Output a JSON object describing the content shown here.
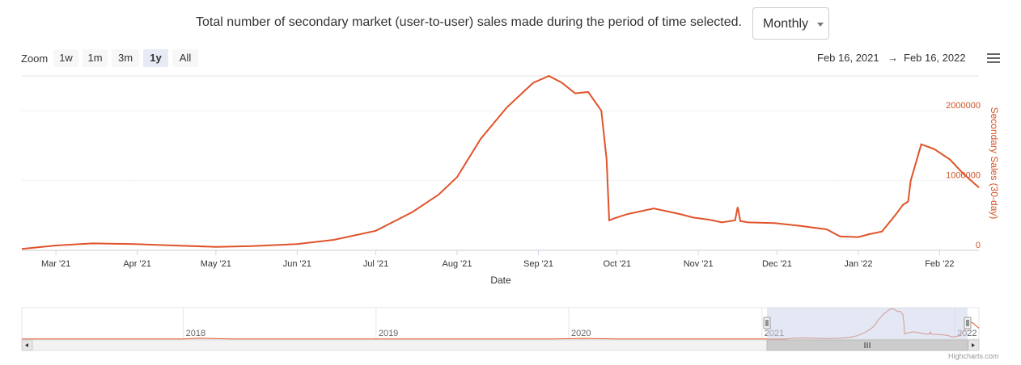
{
  "header": {
    "description": "Total number of secondary market (user-to-user) sales made during the period of time selected.",
    "period_selected": "Monthly"
  },
  "zoom": {
    "label": "Zoom",
    "buttons": [
      "1w",
      "1m",
      "3m",
      "1y",
      "All"
    ],
    "active": "1y"
  },
  "range": {
    "from": "Feb 16, 2021",
    "separator": "→",
    "to": "Feb 16, 2022"
  },
  "credits": "Highcharts.com",
  "colors": {
    "series": "#e0532a",
    "axis_label": "#d2542a",
    "navigator_mask": "#ccd6eb"
  },
  "chart_data": {
    "type": "line",
    "xlabel": "Date",
    "ylabel": "Secondary Sales (30-day)",
    "x_range": [
      "2021-02-16",
      "2022-02-16"
    ],
    "ylim": [
      0,
      2500000
    ],
    "y_ticks": [
      0,
      1000000,
      2000000
    ],
    "x_ticks": [
      "Mar '21",
      "Apr '21",
      "May '21",
      "Jun '21",
      "Jul '21",
      "Aug '21",
      "Sep '21",
      "Oct '21",
      "Nov '21",
      "Dec '21",
      "Jan '22",
      "Feb '22"
    ],
    "grid": true,
    "series": [
      {
        "x": [
          "2021-02-16",
          "2021-03-01",
          "2021-03-15",
          "2021-03-31",
          "2021-04-15",
          "2021-05-01",
          "2021-05-15",
          "2021-06-01",
          "2021-06-15",
          "2021-07-01",
          "2021-07-15",
          "2021-07-25",
          "2021-08-01",
          "2021-08-10",
          "2021-08-20",
          "2021-08-30",
          "2021-09-05",
          "2021-09-10",
          "2021-09-15",
          "2021-09-20",
          "2021-09-25",
          "2021-09-27",
          "2021-09-28",
          "2021-09-30",
          "2021-10-05",
          "2021-10-10",
          "2021-10-15",
          "2021-10-20",
          "2021-10-25",
          "2021-10-30",
          "2021-11-05",
          "2021-11-10",
          "2021-11-15",
          "2021-11-16",
          "2021-11-17",
          "2021-11-20",
          "2021-11-30",
          "2021-12-10",
          "2021-12-20",
          "2021-12-25",
          "2022-01-01",
          "2022-01-05",
          "2022-01-10",
          "2022-01-15",
          "2022-01-18",
          "2022-01-20",
          "2022-01-21",
          "2022-01-25",
          "2022-01-30",
          "2022-02-05",
          "2022-02-10",
          "2022-02-16"
        ],
        "y": [
          20000,
          70000,
          100000,
          90000,
          70000,
          50000,
          60000,
          90000,
          150000,
          280000,
          550000,
          800000,
          1050000,
          1600000,
          2050000,
          2400000,
          2500000,
          2400000,
          2250000,
          2270000,
          2000000,
          1300000,
          430000,
          460000,
          520000,
          560000,
          600000,
          560000,
          520000,
          470000,
          440000,
          400000,
          430000,
          620000,
          420000,
          400000,
          390000,
          350000,
          300000,
          200000,
          190000,
          230000,
          270000,
          500000,
          650000,
          700000,
          1000000,
          1520000,
          1450000,
          1300000,
          1100000,
          900000
        ]
      }
    ]
  },
  "navigator": {
    "years": [
      "2018",
      "2019",
      "2020",
      "2021",
      "2022"
    ]
  }
}
